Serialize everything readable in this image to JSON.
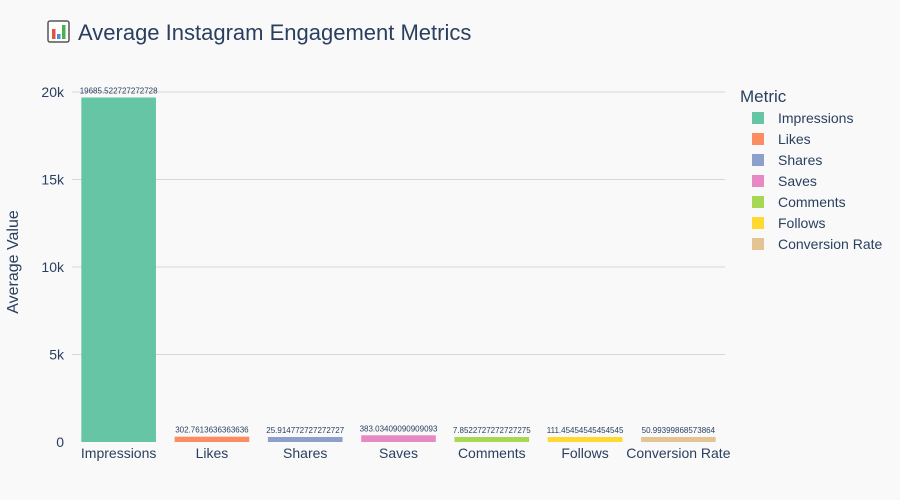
{
  "chart_data": {
    "type": "bar",
    "title": "Average Instagram Engagement Metrics",
    "title_icon": "bar-chart-icon",
    "xlabel": "",
    "ylabel": "Average Value",
    "ylim": [
      0,
      20000
    ],
    "yticks": [
      0,
      5000,
      10000,
      15000,
      20000
    ],
    "ytick_labels": [
      "0",
      "5k",
      "10k",
      "15k",
      "20k"
    ],
    "grid": true,
    "legend_title": "Metric",
    "legend_position": "right",
    "categories": [
      "Impressions",
      "Likes",
      "Shares",
      "Saves",
      "Comments",
      "Follows",
      "Conversion Rate"
    ],
    "values": [
      19685.522727272728,
      302.7613636363636,
      25.914772727272727,
      383.03409090909093,
      7.8522727272727275,
      111.45454545454545,
      50.99399868573864
    ],
    "value_labels": [
      "19685.522727272728",
      "302.7613636363636",
      "25.914772727272727",
      "383.03409090909093",
      "7.8522727272727275",
      "111.45454545454545",
      "50.99399868573864"
    ],
    "colors": [
      "#66c5a5",
      "#fc8d62",
      "#8da0cb",
      "#e78ac3",
      "#a6d854",
      "#ffd92f",
      "#e5c494"
    ]
  }
}
